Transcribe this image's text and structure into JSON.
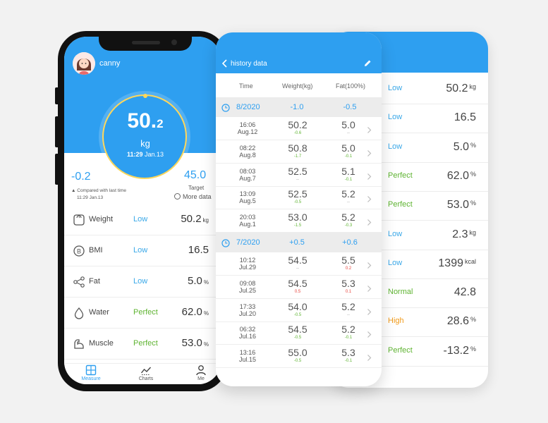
{
  "back_card": {
    "rows": [
      {
        "status": "Low",
        "status_color": "blue",
        "value": "50.2",
        "unit": "kg"
      },
      {
        "status": "Low",
        "status_color": "blue",
        "value": "16.5",
        "unit": ""
      },
      {
        "status": "Low",
        "status_color": "blue",
        "value": "5.0",
        "unit": "%"
      },
      {
        "status": "Perfect",
        "status_color": "green",
        "value": "62.0",
        "unit": "%"
      },
      {
        "status": "Perfect",
        "status_color": "green",
        "value": "53.0",
        "unit": "%"
      },
      {
        "status": "Low",
        "status_color": "blue",
        "value": "2.3",
        "unit": "kg"
      },
      {
        "status": "Low",
        "status_color": "blue",
        "value": "1399",
        "unit": "kcal"
      },
      {
        "status": "Normal",
        "status_color": "green",
        "value": "42.8",
        "unit": ""
      },
      {
        "status": "High",
        "status_color": "orange",
        "value": "28.6",
        "unit": "%"
      },
      {
        "status": "Perfect",
        "status_color": "green",
        "value": "-13.2",
        "unit": "%"
      }
    ]
  },
  "phone": {
    "username": "canny",
    "weight_main": "50.",
    "weight_decimal": "2",
    "weight_unit": "kg",
    "measure_time": "11:29",
    "measure_date": "Jan.13",
    "diff_value": "-0.2",
    "diff_caption": "Compared with last time",
    "diff_time": "11:29 Jan.13",
    "target_value": "45.0",
    "target_label": "Target",
    "more_data": "More data",
    "metrics": [
      {
        "icon": "weight-scale-icon",
        "label": "Weight",
        "status": "Low",
        "status_color": "blue",
        "value": "50.2",
        "unit": "kg"
      },
      {
        "icon": "bmi-icon",
        "label": "BMI",
        "status": "Low",
        "status_color": "blue",
        "value": "16.5",
        "unit": ""
      },
      {
        "icon": "share-nodes-icon",
        "label": "Fat",
        "status": "Low",
        "status_color": "blue",
        "value": "5.0",
        "unit": "%"
      },
      {
        "icon": "water-drop-icon",
        "label": "Water",
        "status": "Perfect",
        "status_color": "green",
        "value": "62.0",
        "unit": "%"
      },
      {
        "icon": "muscle-arm-icon",
        "label": "Muscle",
        "status": "Perfect",
        "status_color": "green",
        "value": "53.0",
        "unit": "%"
      }
    ],
    "nav": [
      {
        "label": "Measure",
        "icon": "grid-icon",
        "active": true
      },
      {
        "label": "Charts",
        "icon": "trend-chart-icon",
        "active": false
      },
      {
        "label": "Me",
        "icon": "person-icon",
        "active": false
      }
    ],
    "accent_color": "#2e9ff0"
  },
  "history": {
    "title": "history data",
    "col_time": "Time",
    "col_weight": "Weight(kg)",
    "col_fat": "Fat(100%)",
    "groups": [
      {
        "month": "8/2020",
        "weight_change": "-1.0",
        "fat_change": "-0.5",
        "rows": [
          {
            "time": "16:06",
            "date": "Aug.12",
            "weight": "50.2",
            "wd": "-0.6",
            "wd_color": "green",
            "fat": "5.0",
            "fd": "--",
            "fd_color": "gray"
          },
          {
            "time": "08:22",
            "date": "Aug.8",
            "weight": "50.8",
            "wd": "-1.7",
            "wd_color": "green",
            "fat": "5.0",
            "fd": "-0.1",
            "fd_color": "green"
          },
          {
            "time": "08:03",
            "date": "Aug.7",
            "weight": "52.5",
            "wd": "--",
            "wd_color": "gray",
            "fat": "5.1",
            "fd": "-0.1",
            "fd_color": "green"
          },
          {
            "time": "13:09",
            "date": "Aug.5",
            "weight": "52.5",
            "wd": "-0.5",
            "wd_color": "green",
            "fat": "5.2",
            "fd": "--",
            "fd_color": "gray"
          },
          {
            "time": "20:03",
            "date": "Aug.1",
            "weight": "53.0",
            "wd": "-1.5",
            "wd_color": "green",
            "fat": "5.2",
            "fd": "-0.3",
            "fd_color": "green"
          }
        ]
      },
      {
        "month": "7/2020",
        "weight_change": "+0.5",
        "fat_change": "+0.6",
        "rows": [
          {
            "time": "10:12",
            "date": "Jul.29",
            "weight": "54.5",
            "wd": "--",
            "wd_color": "gray",
            "fat": "5.5",
            "fd": "0.2",
            "fd_color": "red"
          },
          {
            "time": "09:08",
            "date": "Jul.25",
            "weight": "54.5",
            "wd": "0.5",
            "wd_color": "red",
            "fat": "5.3",
            "fd": "0.1",
            "fd_color": "red"
          },
          {
            "time": "17:33",
            "date": "Jul.20",
            "weight": "54.0",
            "wd": "-0.5",
            "wd_color": "green",
            "fat": "5.2",
            "fd": "--",
            "fd_color": "gray"
          },
          {
            "time": "06:32",
            "date": "Jul.16",
            "weight": "54.5",
            "wd": "-0.5",
            "wd_color": "green",
            "fat": "5.2",
            "fd": "-0.1",
            "fd_color": "green"
          },
          {
            "time": "13:16",
            "date": "Jul.15",
            "weight": "55.0",
            "wd": "-0.5",
            "wd_color": "green",
            "fat": "5.3",
            "fd": "-0.1",
            "fd_color": "green"
          }
        ]
      }
    ]
  }
}
